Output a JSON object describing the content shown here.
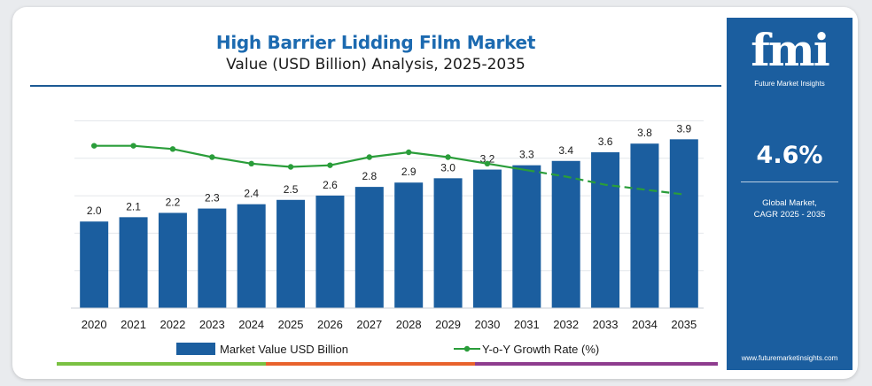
{
  "chart_data": {
    "type": "bar",
    "title": "High Barrier Lidding Film Market",
    "subtitle": "Value (USD Billion) Analysis, 2025-2035",
    "categories": [
      "2020",
      "2021",
      "2022",
      "2023",
      "2024",
      "2025",
      "2026",
      "2027",
      "2028",
      "2029",
      "2030",
      "2031",
      "2032",
      "2033",
      "2034",
      "2035"
    ],
    "series": [
      {
        "name": "Market Value USD Billion",
        "type": "bar",
        "color": "#1b5e9f",
        "values": [
          2.0,
          2.1,
          2.2,
          2.3,
          2.4,
          2.5,
          2.6,
          2.8,
          2.9,
          3.0,
          3.2,
          3.3,
          3.4,
          3.6,
          3.8,
          3.9
        ],
        "labels": [
          "2.0",
          "2.1",
          "2.2",
          "2.3",
          "2.4",
          "2.5",
          "2.6",
          "2.8",
          "2.9",
          "3.0",
          "3.2",
          "3.3",
          "3.4",
          "3.6",
          "3.8",
          "3.9"
        ]
      },
      {
        "name": "Y-o-Y Growth Rate (%)",
        "type": "line",
        "color": "#2a9d3a",
        "values": [
          5.0,
          5.0,
          4.8,
          4.3,
          3.9,
          3.7,
          3.8,
          4.3,
          4.6,
          4.3,
          3.9,
          3.5,
          3.1,
          2.6,
          2.3,
          2.0
        ],
        "dashed_from_index": 11
      }
    ],
    "ylim": [
      0,
      4.5
    ],
    "y2lim": [
      -5,
      7
    ],
    "grid": true,
    "legend_position": "bottom"
  },
  "legend": {
    "bar_label": "Market Value USD Billion",
    "line_label": "Y-o-Y Growth Rate (%)"
  },
  "side_panel": {
    "logo": "fmi",
    "logo_subtitle": "Future Market Insights",
    "cagr_value": "4.6%",
    "cagr_label_line1": "Global Market,",
    "cagr_label_line2": "CAGR 2025 - 2035",
    "website": "www.futuremarketinsights.com"
  },
  "colors": {
    "bar": "#1b5e9f",
    "line": "#2a9d3a",
    "title": "#1c6ab0",
    "panel": "#1b5e9f",
    "accent_green": "#7ac142",
    "accent_orange": "#e8622c",
    "accent_purple": "#8e3c8e"
  }
}
